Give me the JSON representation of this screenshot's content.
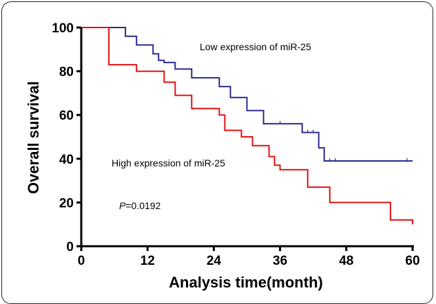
{
  "chart_data": {
    "type": "line",
    "title": "",
    "xlabel": "Analysis time(month)",
    "ylabel": "Overall survival",
    "xlim": [
      0,
      60
    ],
    "ylim": [
      0,
      100
    ],
    "xticks": [
      "0",
      "12",
      "24",
      "36",
      "48",
      "60"
    ],
    "yticks": [
      "0",
      "20",
      "40",
      "60",
      "80",
      "100"
    ],
    "grid": false,
    "series": [
      {
        "name": "Low expression of miR-25",
        "color": "#2a2a8c",
        "steps": [
          [
            0,
            100
          ],
          [
            8,
            100
          ],
          [
            8,
            96
          ],
          [
            10,
            96
          ],
          [
            10,
            92
          ],
          [
            13,
            92
          ],
          [
            13,
            88
          ],
          [
            14,
            88
          ],
          [
            14,
            85
          ],
          [
            15,
            85
          ],
          [
            15,
            84
          ],
          [
            17,
            84
          ],
          [
            17,
            81
          ],
          [
            20,
            81
          ],
          [
            20,
            77
          ],
          [
            25,
            77
          ],
          [
            25,
            73
          ],
          [
            27,
            73
          ],
          [
            27,
            68
          ],
          [
            30,
            68
          ],
          [
            30,
            62
          ],
          [
            33,
            62
          ],
          [
            33,
            56
          ],
          [
            40,
            56
          ],
          [
            40,
            52
          ],
          [
            43,
            52
          ],
          [
            43,
            45
          ],
          [
            44,
            45
          ],
          [
            44,
            39
          ],
          [
            60,
            39
          ]
        ],
        "censored": [
          [
            36,
            56
          ],
          [
            41,
            52
          ],
          [
            42,
            52
          ],
          [
            45,
            39
          ],
          [
            46,
            39
          ],
          [
            59,
            39
          ]
        ]
      },
      {
        "name": "High expression of miR-25",
        "color": "#e01010",
        "steps": [
          [
            0,
            100
          ],
          [
            5,
            100
          ],
          [
            5,
            83
          ],
          [
            10,
            83
          ],
          [
            10,
            80
          ],
          [
            15,
            80
          ],
          [
            15,
            75
          ],
          [
            17,
            75
          ],
          [
            17,
            69
          ],
          [
            20,
            69
          ],
          [
            20,
            63
          ],
          [
            25,
            63
          ],
          [
            25,
            60
          ],
          [
            26,
            60
          ],
          [
            26,
            53
          ],
          [
            29,
            53
          ],
          [
            29,
            50
          ],
          [
            31,
            50
          ],
          [
            31,
            46
          ],
          [
            34,
            46
          ],
          [
            34,
            41
          ],
          [
            35,
            41
          ],
          [
            35,
            37
          ],
          [
            36,
            37
          ],
          [
            36,
            35
          ],
          [
            41,
            35
          ],
          [
            41,
            27
          ],
          [
            45,
            27
          ],
          [
            45,
            20
          ],
          [
            56,
            20
          ],
          [
            56,
            12
          ],
          [
            60,
            12
          ],
          [
            60,
            10
          ]
        ],
        "censored": []
      }
    ],
    "annotations": {
      "low_label": "Low expression of miR-25",
      "high_label": "High expression of miR-25",
      "p_italic": "P",
      "p_value": "=0.0192"
    }
  }
}
